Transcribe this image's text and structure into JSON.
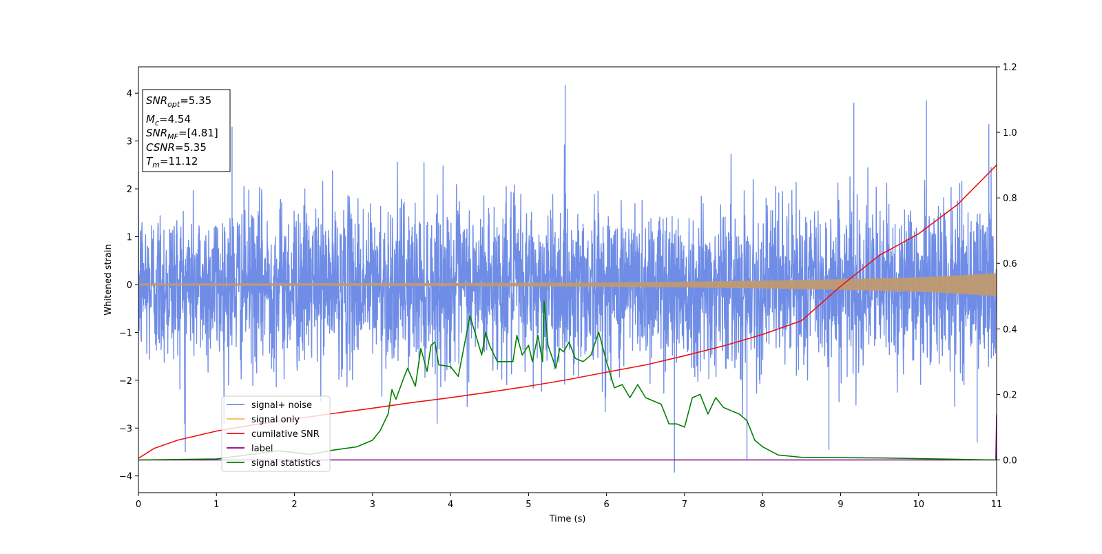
{
  "chart_data": {
    "type": "line",
    "title": "",
    "xlabel": "Time (s)",
    "ylabel": "Whitened strain",
    "xlim": [
      0,
      11
    ],
    "ylim": [
      -4.35,
      4.55
    ],
    "y2lim": [
      -0.1,
      1.2
    ],
    "xticks": [
      0,
      1,
      2,
      3,
      4,
      5,
      6,
      7,
      8,
      9,
      10,
      11
    ],
    "yticks": [
      -4,
      -3,
      -2,
      -1,
      0,
      1,
      2,
      3,
      4
    ],
    "y2ticks": [
      "0.0",
      "0.2",
      "0.4",
      "0.6",
      "0.8",
      "1.0",
      "1.2"
    ],
    "legend_position": "lower-left",
    "grid": false,
    "series": [
      {
        "name": "signal+ noise",
        "color": "#6f8de6",
        "axis": "left",
        "description_values": "dense noise band roughly between -2.5 and 2.5 with spikes up to about 4.2 and down to about -3.9",
        "spikes": [
          [
            0.6,
            -3.5
          ],
          [
            1.2,
            3.3
          ],
          [
            5.47,
            4.17
          ],
          [
            6.87,
            -3.93
          ],
          [
            7.8,
            -3.65
          ],
          [
            8.85,
            -3.45
          ],
          [
            9.17,
            3.8
          ],
          [
            10.1,
            3.85
          ],
          [
            10.75,
            -3.3
          ],
          [
            10.9,
            3.35
          ]
        ]
      },
      {
        "name": "signal only",
        "color": "#f5b85b",
        "axis": "left",
        "amplitude": [
          [
            0,
            0.02
          ],
          [
            4,
            0.03
          ],
          [
            6,
            0.045
          ],
          [
            7,
            0.06
          ],
          [
            8,
            0.08
          ],
          [
            9,
            0.11
          ],
          [
            10,
            0.15
          ],
          [
            10.5,
            0.19
          ],
          [
            11,
            0.24
          ]
        ]
      },
      {
        "name": "cumilative SNR",
        "color": "#ee1111",
        "axis": "right",
        "points": [
          [
            0,
            0.005
          ],
          [
            0.2,
            0.035
          ],
          [
            0.5,
            0.06
          ],
          [
            1,
            0.088
          ],
          [
            1.5,
            0.108
          ],
          [
            2,
            0.125
          ],
          [
            2.5,
            0.142
          ],
          [
            3,
            0.158
          ],
          [
            3.5,
            0.175
          ],
          [
            4,
            0.19
          ],
          [
            4.5,
            0.207
          ],
          [
            5,
            0.225
          ],
          [
            5.5,
            0.245
          ],
          [
            6,
            0.268
          ],
          [
            6.5,
            0.29
          ],
          [
            7,
            0.318
          ],
          [
            7.5,
            0.348
          ],
          [
            8,
            0.383
          ],
          [
            8.5,
            0.425
          ],
          [
            9,
            0.53
          ],
          [
            9.5,
            0.625
          ],
          [
            10,
            0.69
          ],
          [
            10.5,
            0.78
          ],
          [
            11,
            0.9
          ]
        ]
      },
      {
        "name": "label",
        "color": "#800080",
        "axis": "right",
        "points": [
          [
            0,
            0.0
          ],
          [
            10.99,
            0.0
          ],
          [
            11,
            0.14
          ]
        ]
      },
      {
        "name": "signal statistics",
        "color": "#008000",
        "axis": "right",
        "points": [
          [
            0,
            0.0
          ],
          [
            1,
            0.003
          ],
          [
            1.8,
            0.028
          ],
          [
            2.2,
            0.017
          ],
          [
            2.5,
            0.03
          ],
          [
            2.8,
            0.04
          ],
          [
            3.0,
            0.06
          ],
          [
            3.1,
            0.09
          ],
          [
            3.2,
            0.14
          ],
          [
            3.25,
            0.215
          ],
          [
            3.3,
            0.185
          ],
          [
            3.4,
            0.25
          ],
          [
            3.45,
            0.28
          ],
          [
            3.55,
            0.225
          ],
          [
            3.62,
            0.34
          ],
          [
            3.7,
            0.27
          ],
          [
            3.75,
            0.35
          ],
          [
            3.8,
            0.36
          ],
          [
            3.85,
            0.29
          ],
          [
            4.0,
            0.285
          ],
          [
            4.1,
            0.255
          ],
          [
            4.25,
            0.44
          ],
          [
            4.3,
            0.4
          ],
          [
            4.4,
            0.32
          ],
          [
            4.45,
            0.39
          ],
          [
            4.5,
            0.35
          ],
          [
            4.6,
            0.3
          ],
          [
            4.8,
            0.3
          ],
          [
            4.85,
            0.38
          ],
          [
            4.92,
            0.32
          ],
          [
            5.0,
            0.35
          ],
          [
            5.05,
            0.3
          ],
          [
            5.12,
            0.38
          ],
          [
            5.18,
            0.3
          ],
          [
            5.2,
            0.485
          ],
          [
            5.25,
            0.35
          ],
          [
            5.35,
            0.28
          ],
          [
            5.4,
            0.34
          ],
          [
            5.45,
            0.33
          ],
          [
            5.52,
            0.36
          ],
          [
            5.6,
            0.31
          ],
          [
            5.7,
            0.3
          ],
          [
            5.8,
            0.32
          ],
          [
            5.9,
            0.39
          ],
          [
            6.0,
            0.3
          ],
          [
            6.1,
            0.22
          ],
          [
            6.2,
            0.23
          ],
          [
            6.3,
            0.19
          ],
          [
            6.4,
            0.23
          ],
          [
            6.5,
            0.19
          ],
          [
            6.6,
            0.18
          ],
          [
            6.7,
            0.17
          ],
          [
            6.8,
            0.11
          ],
          [
            6.9,
            0.11
          ],
          [
            7.0,
            0.1
          ],
          [
            7.1,
            0.19
          ],
          [
            7.2,
            0.2
          ],
          [
            7.3,
            0.14
          ],
          [
            7.4,
            0.19
          ],
          [
            7.5,
            0.16
          ],
          [
            7.6,
            0.15
          ],
          [
            7.7,
            0.14
          ],
          [
            7.8,
            0.12
          ],
          [
            7.9,
            0.06
          ],
          [
            8.0,
            0.04
          ],
          [
            8.2,
            0.015
          ],
          [
            8.5,
            0.008
          ],
          [
            9.5,
            0.006
          ],
          [
            11,
            0.0
          ]
        ]
      }
    ],
    "annotation_box": {
      "position": "top-left",
      "lines": [
        {
          "name": "SNR",
          "sub": "opt",
          "value": "=5.35"
        },
        {
          "name": "M",
          "sub": "c",
          "value": "=4.54"
        },
        {
          "name": "SNR",
          "sub": "MF",
          "value": "=[4.81]"
        },
        {
          "name": "CSNR",
          "sub": "",
          "value": "=5.35"
        },
        {
          "name": "T",
          "sub": "m",
          "value": "=11.12"
        }
      ]
    }
  }
}
